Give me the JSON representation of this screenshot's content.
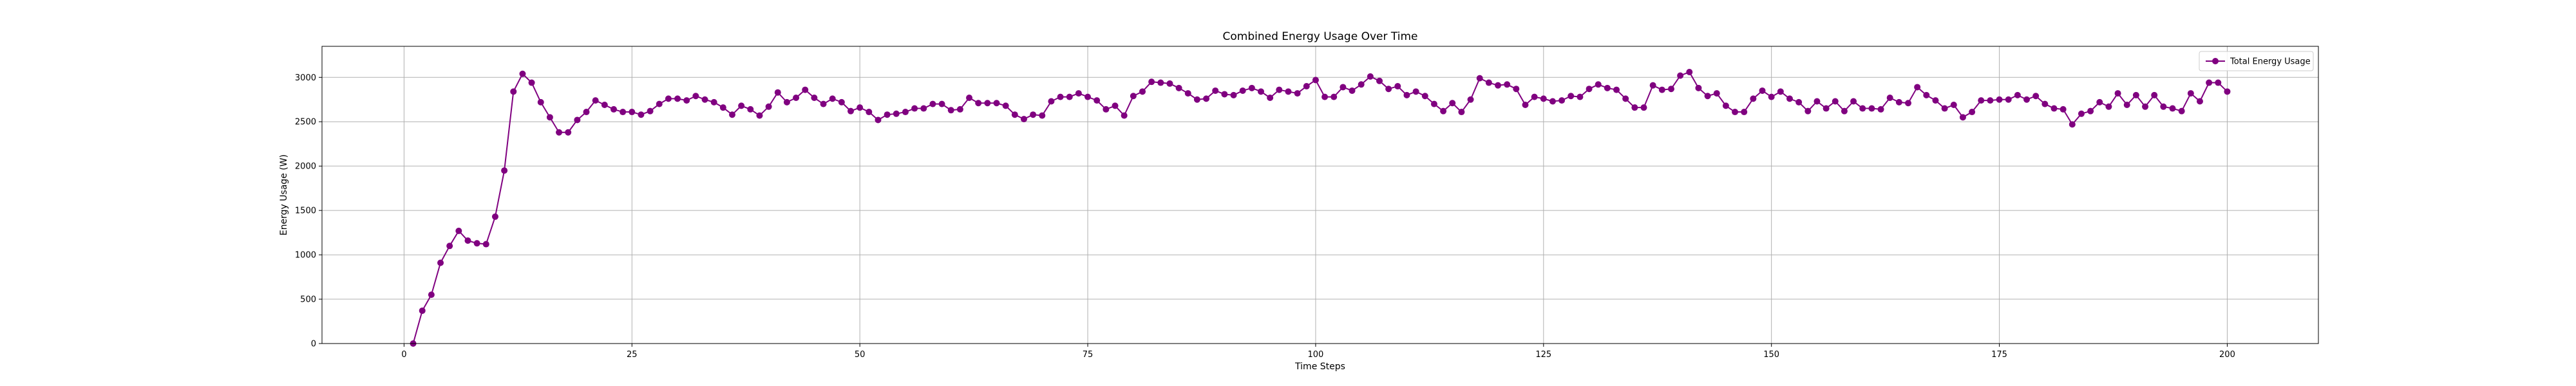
{
  "chart_data": {
    "type": "line",
    "title": "Combined Energy Usage Over Time",
    "xlabel": "Time Steps",
    "ylabel": "Energy Usage (W)",
    "xlim": [
      -9,
      210
    ],
    "ylim": [
      0,
      3350
    ],
    "x_ticks": [
      0,
      25,
      50,
      75,
      100,
      125,
      150,
      175,
      200
    ],
    "y_ticks": [
      0,
      500,
      1000,
      1500,
      2000,
      2500,
      3000
    ],
    "grid": true,
    "legend_position": "top-right",
    "series": [
      {
        "name": "Total Energy Usage",
        "color": "#800080",
        "marker": "circle",
        "x_start": 1,
        "values": [
          0,
          370,
          550,
          910,
          1100,
          1270,
          1160,
          1130,
          1120,
          1430,
          1950,
          2840,
          3040,
          2940,
          2720,
          2550,
          2380,
          2380,
          2520,
          2610,
          2740,
          2690,
          2640,
          2610,
          2610,
          2580,
          2620,
          2700,
          2760,
          2760,
          2740,
          2790,
          2750,
          2720,
          2660,
          2580,
          2680,
          2640,
          2570,
          2670,
          2830,
          2720,
          2770,
          2860,
          2770,
          2700,
          2760,
          2720,
          2620,
          2660,
          2610,
          2520,
          2580,
          2590,
          2610,
          2650,
          2650,
          2700,
          2700,
          2630,
          2640,
          2770,
          2710,
          2710,
          2710,
          2680,
          2580,
          2530,
          2580,
          2570,
          2730,
          2780,
          2780,
          2820,
          2780,
          2740,
          2640,
          2680,
          2570,
          2790,
          2840,
          2950,
          2940,
          2930,
          2880,
          2820,
          2750,
          2760,
          2850,
          2810,
          2800,
          2850,
          2880,
          2840,
          2770,
          2860,
          2840,
          2820,
          2900,
          2970,
          2780,
          2780,
          2890,
          2850,
          2920,
          3010,
          2960,
          2870,
          2900,
          2800,
          2840,
          2790,
          2700,
          2620,
          2710,
          2610,
          2750,
          2990,
          2940,
          2910,
          2920,
          2870,
          2690,
          2780,
          2760,
          2730,
          2740,
          2790,
          2780,
          2870,
          2920,
          2880,
          2860,
          2760,
          2660,
          2660,
          2910,
          2860,
          2870,
          3020,
          3060,
          2880,
          2790,
          2820,
          2680,
          2610,
          2610,
          2760,
          2850,
          2780,
          2840,
          2760,
          2720,
          2620,
          2730,
          2650,
          2730,
          2620,
          2730,
          2650,
          2650,
          2640,
          2770,
          2720,
          2710,
          2890,
          2800,
          2740,
          2650,
          2690,
          2550,
          2610,
          2740,
          2740,
          2750,
          2750,
          2800,
          2750,
          2790,
          2700,
          2650,
          2640,
          2470,
          2590,
          2620,
          2720,
          2670,
          2820,
          2690,
          2800,
          2670,
          2800,
          2670,
          2650,
          2620,
          2820,
          2730,
          2940,
          2940,
          2840
        ]
      }
    ]
  }
}
